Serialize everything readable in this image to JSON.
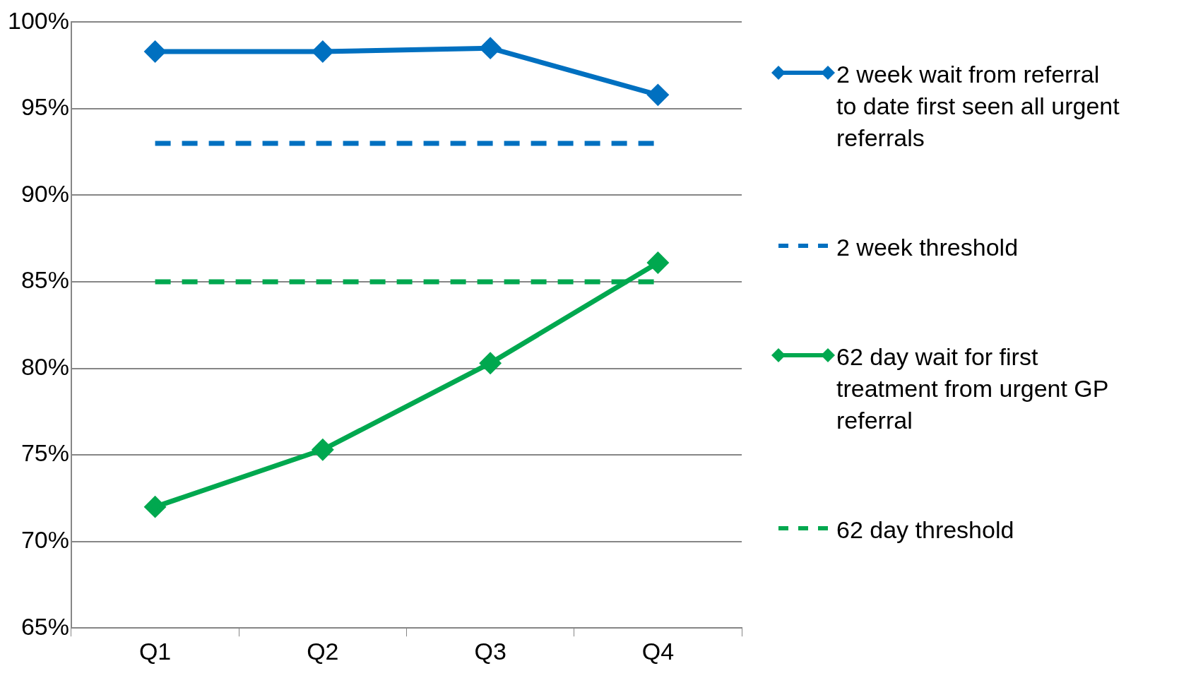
{
  "chart_data": {
    "type": "line",
    "categories": [
      "Q1",
      "Q2",
      "Q3",
      "Q4"
    ],
    "series": [
      {
        "name": "2 week wait from referral to date first seen all urgent referrals",
        "color": "#0070c0",
        "values": [
          98.3,
          98.3,
          98.5,
          95.8
        ],
        "marker": "diamond",
        "line_style": "solid"
      },
      {
        "name": "2 week threshold",
        "color": "#0070c0",
        "values": [
          93,
          93,
          93,
          93
        ],
        "marker": "none",
        "line_style": "dashed"
      },
      {
        "name": "62 day wait for first treatment from urgent GP referral",
        "color": "#00a84f",
        "values": [
          72.0,
          75.3,
          80.3,
          86.1
        ],
        "marker": "diamond",
        "line_style": "solid"
      },
      {
        "name": "62 day threshold",
        "color": "#00a84f",
        "values": [
          85,
          85,
          85,
          85
        ],
        "marker": "none",
        "line_style": "dashed"
      }
    ],
    "ylim": [
      65,
      100
    ],
    "yticks": [
      {
        "value": 65,
        "label": "65%"
      },
      {
        "value": 70,
        "label": "70%"
      },
      {
        "value": 75,
        "label": "75%"
      },
      {
        "value": 80,
        "label": "80%"
      },
      {
        "value": 85,
        "label": "85%"
      },
      {
        "value": 90,
        "label": "90%"
      },
      {
        "value": 95,
        "label": "95%"
      },
      {
        "value": 100,
        "label": "100%"
      }
    ],
    "grid": "y",
    "legend": "right"
  }
}
